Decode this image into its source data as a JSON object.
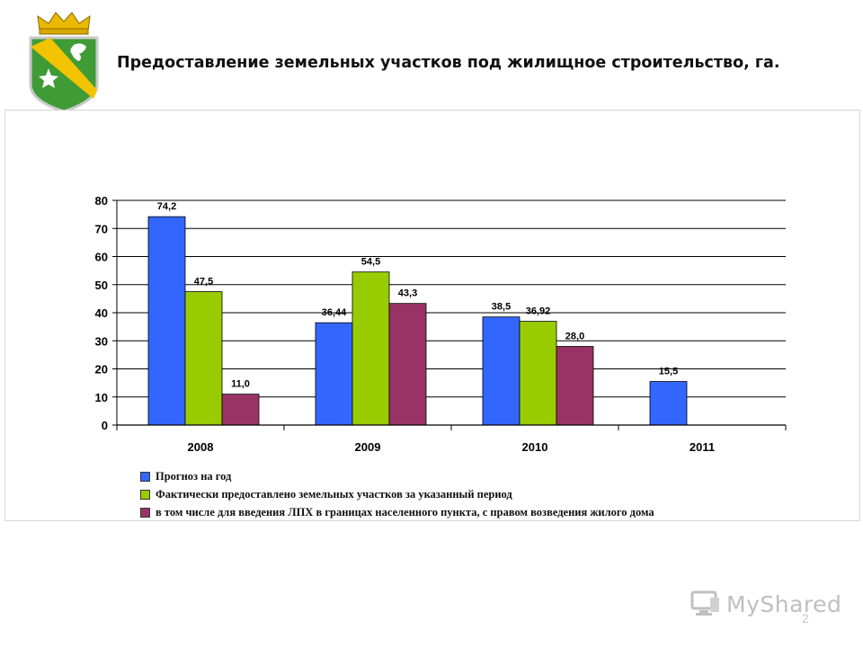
{
  "title": "Предоставление земельных участков под жилищное строительство, га.",
  "page_number": "2",
  "watermark": {
    "text": "MyShared",
    "icon": "monitor-icon"
  },
  "emblem": {
    "icon": "coat-of-arms-icon",
    "colors": {
      "shield_green": "#3f9b36",
      "stripe_yellow": "#f2c300",
      "crown_gold": "#e9b800"
    }
  },
  "chart_data": {
    "type": "bar",
    "categories": [
      "2008",
      "2009",
      "2010",
      "2011"
    ],
    "ylim": [
      0,
      80
    ],
    "yticks": [
      "0",
      "10",
      "20",
      "30",
      "40",
      "50",
      "60",
      "70",
      "80"
    ],
    "grid": true,
    "legend_position": "bottom",
    "series": [
      {
        "name": "Прогноз на год",
        "color": "#3366ff",
        "values": [
          74.2,
          36.44,
          38.5,
          15.5
        ],
        "labels": [
          "74,2",
          "36,44",
          "38,5",
          "15,5"
        ]
      },
      {
        "name": "Фактически предоставлено земельных участков за указанный период",
        "color": "#99cc00",
        "values": [
          47.5,
          54.5,
          36.92,
          null
        ],
        "labels": [
          "47,5",
          "54,5",
          "36,92",
          ""
        ]
      },
      {
        "name": "в том числе для введения ЛПХ в границах населенного пункта, с правом возведения жилого дома",
        "color": "#993366",
        "values": [
          11.0,
          43.3,
          28.0,
          null
        ],
        "labels": [
          "11,0",
          "43,3",
          "28,0",
          ""
        ]
      }
    ]
  }
}
